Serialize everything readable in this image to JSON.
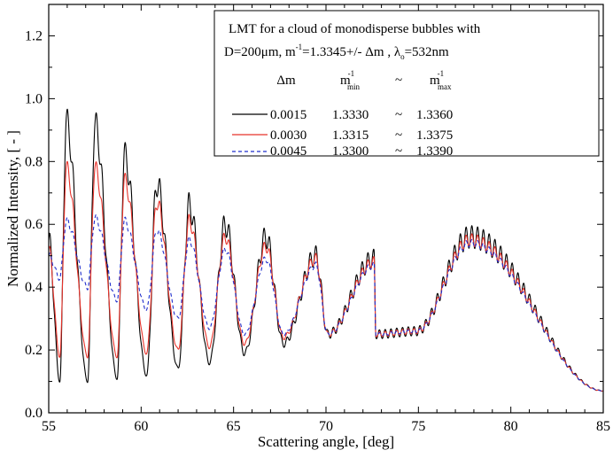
{
  "chart_data": {
    "type": "line",
    "xlabel": "Scattering angle, [deg]",
    "ylabel": "Normalized Intensity, [ - ]",
    "xlim": [
      55,
      85
    ],
    "ylim": [
      0.0,
      1.3
    ],
    "xticks": [
      55,
      60,
      65,
      70,
      75,
      80,
      85
    ],
    "yticks": [
      0.0,
      0.2,
      0.4,
      0.6,
      0.8,
      1.0,
      1.2
    ],
    "xtick_labels": [
      "55",
      "60",
      "65",
      "70",
      "75",
      "80",
      "85"
    ],
    "ytick_labels": [
      "0.0",
      "0.2",
      "0.4",
      "0.6",
      "0.8",
      "1.0",
      "1.2"
    ],
    "grid": false,
    "legend": {
      "position": "top-right",
      "title_line1": "LMT for a cloud of monodisperse bubbles  with",
      "title_line2_a": "D=200μm, m",
      "title_line2_sup": "-1",
      "title_line2_b": "=1.3345+/- Δm ,  λ",
      "title_line2_sub": "o",
      "title_line2_c": "=532nm",
      "col_dm": "Δm",
      "col_min_main": "m",
      "col_min_sup": "-1",
      "col_min_sub": "min",
      "col_tilde": "~",
      "col_max_main": "m",
      "col_max_sup": "-1",
      "col_max_sub": "max",
      "rows": [
        {
          "dm": "0.0015",
          "mmin": "1.3330",
          "tilde": "~",
          "mmax": "1.3360"
        },
        {
          "dm": "0.0030",
          "mmin": "1.3315",
          "tilde": "~",
          "mmax": "1.3375"
        },
        {
          "dm": "0.0045",
          "mmin": "1.3300",
          "tilde": "~",
          "mmax": "1.3390"
        }
      ]
    },
    "series": [
      {
        "color": "#000000",
        "dash": "solid",
        "minima": [
          [
            55.0,
            0.55
          ],
          [
            55.6,
            0.1
          ],
          [
            57.1,
            0.1
          ],
          [
            58.7,
            0.11
          ],
          [
            60.3,
            0.12
          ],
          [
            62.0,
            0.14
          ],
          [
            63.7,
            0.16
          ],
          [
            65.6,
            0.19
          ],
          [
            67.7,
            0.22
          ],
          [
            70.1,
            0.25
          ],
          [
            72.7,
            0.25
          ],
          [
            74.9,
            0.26
          ]
        ],
        "maxima": [
          [
            55.95,
            0.93
          ],
          [
            57.5,
            0.92
          ],
          [
            59.1,
            0.82
          ],
          [
            60.85,
            0.73
          ],
          [
            62.6,
            0.66
          ],
          [
            64.55,
            0.6
          ],
          [
            66.75,
            0.56
          ],
          [
            69.45,
            0.5
          ],
          [
            72.6,
            0.49
          ],
          [
            77.8,
            0.56
          ],
          [
            85.0,
            0.07
          ]
        ],
        "ripple": 0.035
      },
      {
        "color": "#e8332b",
        "dash": "solid",
        "minima": [
          [
            55.0,
            0.52
          ],
          [
            55.6,
            0.18
          ],
          [
            57.1,
            0.18
          ],
          [
            58.7,
            0.18
          ],
          [
            60.3,
            0.19
          ],
          [
            62.0,
            0.2
          ],
          [
            63.7,
            0.21
          ],
          [
            65.6,
            0.22
          ],
          [
            67.7,
            0.24
          ],
          [
            70.1,
            0.25
          ],
          [
            72.7,
            0.25
          ],
          [
            74.9,
            0.26
          ]
        ],
        "maxima": [
          [
            55.95,
            0.78
          ],
          [
            57.5,
            0.78
          ],
          [
            59.1,
            0.74
          ],
          [
            60.85,
            0.67
          ],
          [
            62.6,
            0.61
          ],
          [
            64.55,
            0.56
          ],
          [
            66.75,
            0.53
          ],
          [
            69.45,
            0.49
          ],
          [
            72.6,
            0.48
          ],
          [
            77.8,
            0.55
          ],
          [
            85.0,
            0.07
          ]
        ],
        "ripple": 0.02
      },
      {
        "color": "#1f2dcc",
        "dash": "dashed",
        "minima": [
          [
            55.0,
            0.5
          ],
          [
            55.6,
            0.43
          ],
          [
            57.1,
            0.4
          ],
          [
            58.7,
            0.36
          ],
          [
            60.3,
            0.33
          ],
          [
            62.0,
            0.3
          ],
          [
            63.7,
            0.27
          ],
          [
            65.6,
            0.25
          ],
          [
            67.7,
            0.25
          ],
          [
            70.1,
            0.25
          ],
          [
            72.7,
            0.25
          ],
          [
            74.9,
            0.26
          ]
        ],
        "maxima": [
          [
            55.95,
            0.61
          ],
          [
            57.5,
            0.62
          ],
          [
            59.1,
            0.61
          ],
          [
            60.85,
            0.58
          ],
          [
            62.6,
            0.55
          ],
          [
            64.55,
            0.52
          ],
          [
            66.75,
            0.49
          ],
          [
            69.45,
            0.47
          ],
          [
            72.6,
            0.47
          ],
          [
            77.8,
            0.54
          ],
          [
            85.0,
            0.07
          ]
        ],
        "ripple": 0.012
      }
    ]
  }
}
